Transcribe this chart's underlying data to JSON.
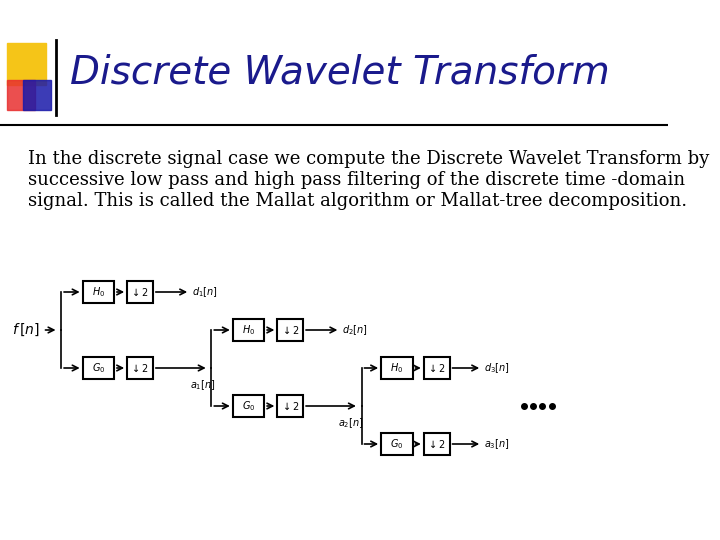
{
  "title": "Discrete Wavelet Transform",
  "title_color": "#1a1a8c",
  "body_text": "In the discrete signal case we compute the Discrete Wavelet Transform by successive low pass and high pass filtering of the discrete time -domain signal. This is called the Mallat algorithm or Mallat-tree decomposition.",
  "bg_color": "#ffffff",
  "accent_colors": [
    "#f5c518",
    "#e83030",
    "#1a1aaa"
  ],
  "line_color": "#000000"
}
